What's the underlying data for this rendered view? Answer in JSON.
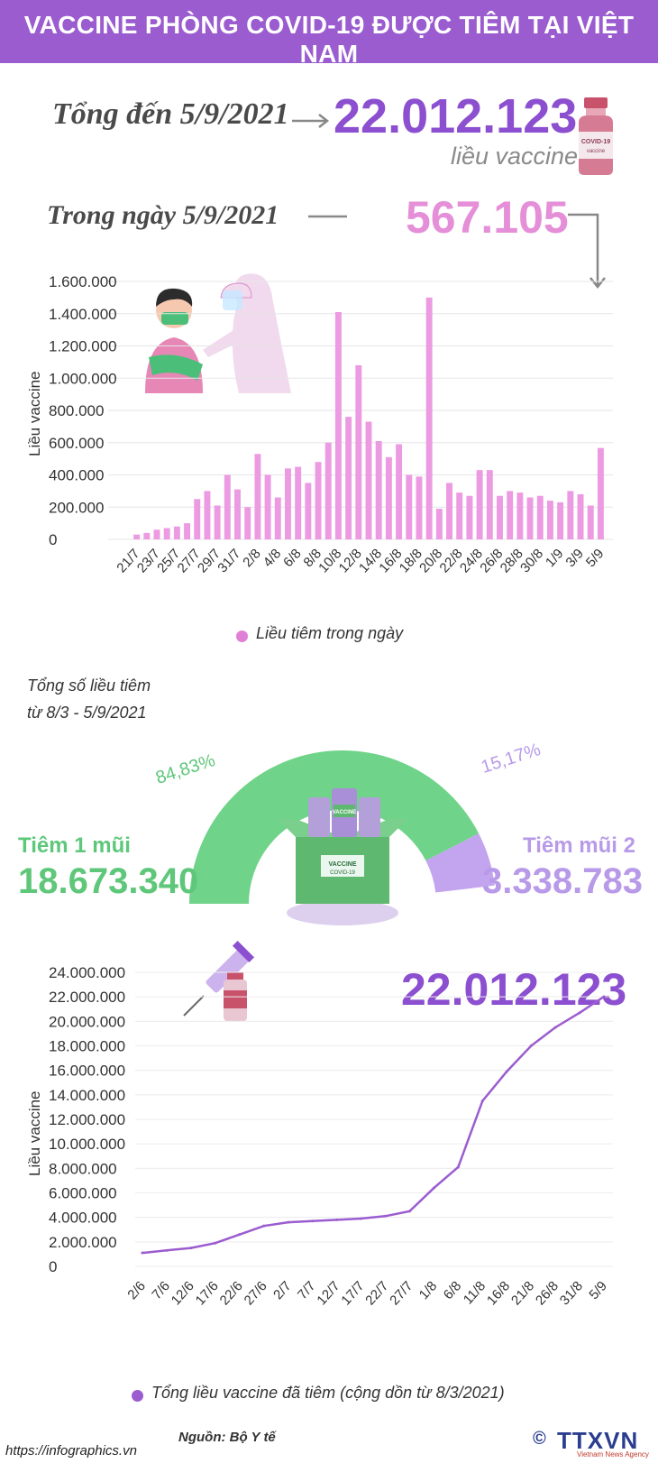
{
  "header": {
    "title": "VACCINE PHÒNG COVID-19 ĐƯỢC TIÊM TẠI VIỆT NAM"
  },
  "summary": {
    "total_label": "Tổng đến 5/9/2021",
    "total_value": "22.012.123",
    "total_unit": "liều vaccine",
    "day_label": "Trong ngày 5/9/2021",
    "day_value": "567.105",
    "vial_label": "COVID-19 vaccine"
  },
  "daily": {
    "legend": "Liều tiêm trong ngày",
    "legend_color": "#e07fd6",
    "bar_color": "#ec9be3"
  },
  "donut": {
    "title_line1": "Tổng số liều tiêm",
    "title_line2": "từ 8/3 - 5/9/2021",
    "dose1_label": "Tiêm 1 mũi",
    "dose1_value": "18.673.340",
    "dose1_pct": "84,83%",
    "dose2_label": "Tiêm mũi 2",
    "dose2_value": "3.338.783",
    "dose2_pct": "15,17%",
    "dose1_color": "#6fd389",
    "dose2_color": "#c3a4ef",
    "box_label": "VACCINE",
    "box_sub": "COVID-19",
    "vial_label": "VACCINE"
  },
  "cumulative": {
    "headline": "22.012.123",
    "legend": "Tổng liều vaccine đã tiêm (cộng dồn từ 8/3/2021)",
    "line_color": "#9b5ccf"
  },
  "footer": {
    "source": "Nguồn: Bộ Y tế",
    "url": "https://infographics.vn",
    "copyright": "©",
    "logo": "TTXVN",
    "logo_sub": "Vietnam News Agency"
  },
  "chart_data": [
    {
      "type": "bar",
      "ylabel": "Liều vaccine",
      "ylim": [
        0,
        1600000
      ],
      "yticks": [
        0,
        200000,
        400000,
        600000,
        800000,
        1000000,
        1200000,
        1400000,
        1600000
      ],
      "ytick_labels": [
        "0",
        "200.000",
        "400.000",
        "600.000",
        "800.000",
        "1.000.000",
        "1.200.000",
        "1.400.000",
        "1.600.000"
      ],
      "grid": true,
      "categories": [
        "21/7",
        "22/7",
        "23/7",
        "24/7",
        "25/7",
        "26/7",
        "27/7",
        "28/7",
        "29/7",
        "30/7",
        "31/7",
        "1/8",
        "2/8",
        "3/8",
        "4/8",
        "5/8",
        "6/8",
        "7/8",
        "8/8",
        "9/8",
        "10/8",
        "11/8",
        "12/8",
        "13/8",
        "14/8",
        "15/8",
        "16/8",
        "17/8",
        "18/8",
        "19/8",
        "20/8",
        "21/8",
        "22/8",
        "23/8",
        "24/8",
        "25/8",
        "26/8",
        "27/8",
        "28/8",
        "29/8",
        "30/8",
        "31/8",
        "1/9",
        "2/9",
        "3/9",
        "4/9",
        "5/9"
      ],
      "tick_labels": [
        "21/7",
        "",
        "23/7",
        "",
        "25/7",
        "",
        "27/7",
        "",
        "29/7",
        "",
        "31/7",
        "",
        "2/8",
        "",
        "4/8",
        "",
        "6/8",
        "",
        "8/8",
        "",
        "10/8",
        "",
        "12/8",
        "",
        "14/8",
        "",
        "16/8",
        "",
        "18/8",
        "",
        "20/8",
        "",
        "22/8",
        "",
        "24/8",
        "",
        "26/8",
        "",
        "28/8",
        "",
        "30/8",
        "",
        "1/9",
        "",
        "3/9",
        "",
        "5/9"
      ],
      "series": [
        {
          "name": "Liều tiêm trong ngày",
          "values": [
            30000,
            40000,
            60000,
            70000,
            80000,
            100000,
            250000,
            300000,
            210000,
            400000,
            310000,
            200000,
            530000,
            400000,
            260000,
            440000,
            450000,
            350000,
            480000,
            600000,
            1410000,
            760000,
            1080000,
            730000,
            610000,
            510000,
            590000,
            400000,
            390000,
            1500000,
            190000,
            350000,
            290000,
            270000,
            430000,
            430000,
            270000,
            300000,
            290000,
            260000,
            270000,
            240000,
            230000,
            300000,
            280000,
            210000,
            567105
          ]
        }
      ]
    },
    {
      "type": "pie",
      "variant": "half-donut",
      "slices": [
        {
          "label": "Tiêm 1 mũi",
          "value": 18673340,
          "percent": 84.83
        },
        {
          "label": "Tiêm mũi 2",
          "value": 3338783,
          "percent": 15.17
        }
      ]
    },
    {
      "type": "line",
      "ylabel": "Liều vaccine",
      "ylim": [
        0,
        24000000
      ],
      "yticks": [
        0,
        2000000,
        4000000,
        6000000,
        8000000,
        10000000,
        12000000,
        14000000,
        16000000,
        18000000,
        20000000,
        22000000,
        24000000
      ],
      "ytick_labels": [
        "0",
        "2.000.000",
        "4.000.000",
        "6.000.000",
        "8.000.000",
        "10.000.000",
        "12.000.000",
        "14.000.000",
        "16.000.000",
        "18.000.000",
        "20.000.000",
        "22.000.000",
        "24.000.000"
      ],
      "grid": true,
      "x_tick_labels": [
        "2/6",
        "7/6",
        "12/6",
        "17/6",
        "22/6",
        "27/6",
        "2/7",
        "7/7",
        "12/7",
        "17/7",
        "22/7",
        "27/7",
        "1/8",
        "6/8",
        "11/8",
        "16/8",
        "21/8",
        "26/8",
        "31/8",
        "5/9"
      ],
      "x_ticks_at": [
        "2/6",
        "7/6",
        "12/6",
        "17/6",
        "22/6",
        "27/6",
        "2/7",
        "7/7",
        "12/7",
        "17/7",
        "22/7",
        "27/7",
        "1/8",
        "6/8",
        "11/8",
        "16/8",
        "21/8",
        "26/8",
        "31/8",
        "5/9"
      ],
      "series": [
        {
          "name": "Tổng liều vaccine đã tiêm (cộng dồn từ 8/3/2021)",
          "x": [
            "2/6",
            "7/6",
            "12/6",
            "17/6",
            "22/6",
            "27/6",
            "2/7",
            "7/7",
            "12/7",
            "17/7",
            "22/7",
            "27/7",
            "1/8",
            "6/8",
            "11/8",
            "16/8",
            "21/8",
            "26/8",
            "31/8",
            "5/9"
          ],
          "values": [
            1100000,
            1300000,
            1500000,
            1900000,
            2600000,
            3300000,
            3600000,
            3700000,
            3800000,
            3900000,
            4100000,
            4500000,
            6400000,
            8100000,
            13500000,
            15900000,
            18000000,
            19500000,
            20700000,
            22012123
          ]
        }
      ]
    }
  ]
}
